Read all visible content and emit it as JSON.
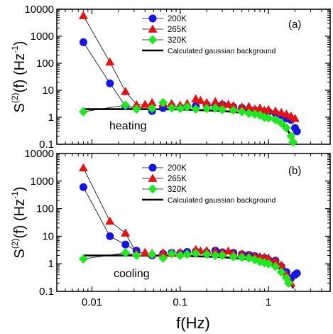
{
  "chart_data": [
    {
      "type": "scatter",
      "panel_label": "(a)",
      "annotation": "heating",
      "ylabel_base": "S",
      "ylabel_sup": "(2)",
      "ylabel_rest": "(f) (Hz",
      "ylabel_unit_sup": "-1",
      "ylabel_close": ")",
      "xlabel": "",
      "xscale": "log",
      "yscale": "log",
      "xlim": [
        0.004,
        5
      ],
      "ylim": [
        0.1,
        10000
      ],
      "yticks": [
        "0.1",
        "1",
        "10",
        "100",
        "1000",
        "10000"
      ],
      "legend_position": "top-right",
      "series": [
        {
          "name": "200K",
          "marker": "circle",
          "color": "#1515e6",
          "points": [
            [
              0.008,
              600
            ],
            [
              0.016,
              18
            ],
            [
              0.024,
              2.6
            ],
            [
              0.032,
              2.2
            ],
            [
              0.048,
              1.7
            ],
            [
              0.064,
              2.2
            ],
            [
              0.08,
              2.6
            ],
            [
              0.1,
              2.3
            ],
            [
              0.12,
              2.5
            ],
            [
              0.15,
              2.6
            ],
            [
              0.2,
              2.9
            ],
            [
              0.25,
              2.6
            ],
            [
              0.3,
              2.9
            ],
            [
              0.4,
              2.4
            ],
            [
              0.5,
              2.2
            ],
            [
              0.6,
              1.9
            ],
            [
              0.7,
              1.8
            ],
            [
              0.8,
              1.5
            ],
            [
              0.9,
              1.6
            ],
            [
              1.0,
              1.6
            ],
            [
              1.2,
              1.4
            ],
            [
              1.4,
              1.2
            ],
            [
              1.6,
              0.9
            ],
            [
              1.8,
              0.8
            ],
            [
              2.0,
              0.4
            ],
            [
              2.1,
              0.3
            ]
          ]
        },
        {
          "name": "265K",
          "marker": "triangle",
          "color": "#e81010",
          "points": [
            [
              0.008,
              5800
            ],
            [
              0.016,
              110
            ],
            [
              0.024,
              9
            ],
            [
              0.032,
              2.9
            ],
            [
              0.04,
              3.0
            ],
            [
              0.048,
              3.5
            ],
            [
              0.064,
              3.3
            ],
            [
              0.08,
              3.2
            ],
            [
              0.1,
              2.8
            ],
            [
              0.12,
              3.2
            ],
            [
              0.15,
              4.8
            ],
            [
              0.17,
              4.2
            ],
            [
              0.2,
              3.5
            ],
            [
              0.25,
              3.8
            ],
            [
              0.3,
              3.1
            ],
            [
              0.35,
              3.0
            ],
            [
              0.4,
              2.7
            ],
            [
              0.5,
              2.4
            ],
            [
              0.6,
              2.5
            ],
            [
              0.7,
              2.0
            ],
            [
              0.8,
              2.2
            ],
            [
              0.9,
              1.8
            ],
            [
              1.0,
              1.9
            ],
            [
              1.2,
              1.7
            ],
            [
              1.4,
              1.5
            ],
            [
              1.6,
              1.3
            ],
            [
              1.8,
              1.1
            ],
            [
              2.0,
              0.9
            ]
          ]
        },
        {
          "name": "320K",
          "marker": "diamond",
          "color": "#1ee81e",
          "points": [
            [
              0.008,
              1.6
            ],
            [
              0.024,
              2.8
            ],
            [
              0.032,
              2.0
            ],
            [
              0.048,
              2.1
            ],
            [
              0.064,
              3.5
            ],
            [
              0.08,
              2.2
            ],
            [
              0.1,
              2.1
            ],
            [
              0.12,
              2.4
            ],
            [
              0.15,
              2.0
            ],
            [
              0.2,
              2.1
            ],
            [
              0.25,
              2.2
            ],
            [
              0.3,
              1.9
            ],
            [
              0.4,
              1.8
            ],
            [
              0.5,
              1.6
            ],
            [
              0.6,
              1.4
            ],
            [
              0.7,
              1.3
            ],
            [
              0.8,
              1.2
            ],
            [
              0.9,
              1.0
            ],
            [
              1.0,
              0.95
            ],
            [
              1.2,
              0.8
            ],
            [
              1.4,
              0.6
            ],
            [
              1.6,
              0.4
            ],
            [
              1.8,
              0.2
            ],
            [
              1.9,
              0.12
            ]
          ]
        },
        {
          "name": "Calculated gaussian background",
          "marker": "line",
          "color": "#000000",
          "points": [
            [
              0.008,
              2.0
            ],
            [
              0.03,
              2.0
            ],
            [
              0.1,
              1.95
            ],
            [
              0.3,
              1.7
            ],
            [
              0.6,
              1.4
            ],
            [
              1.0,
              1.0
            ],
            [
              1.3,
              0.7
            ],
            [
              1.6,
              0.4
            ],
            [
              1.8,
              0.2
            ],
            [
              1.9,
              0.12
            ]
          ]
        }
      ]
    },
    {
      "type": "scatter",
      "panel_label": "(b)",
      "annotation": "cooling",
      "ylabel_base": "S",
      "ylabel_sup": "(2)",
      "ylabel_rest": "(f) (Hz",
      "ylabel_unit_sup": "-1",
      "ylabel_close": ")",
      "xlabel": "f(Hz)",
      "xscale": "log",
      "yscale": "log",
      "xlim": [
        0.004,
        5
      ],
      "ylim": [
        0.1,
        10000
      ],
      "xticks": [
        "0.01",
        "0.1",
        "1"
      ],
      "yticks": [
        "0.1",
        "1",
        "10",
        "100",
        "1000",
        "10000"
      ],
      "legend_position": "top-right",
      "series": [
        {
          "name": "200K",
          "marker": "circle",
          "color": "#1515e6",
          "points": [
            [
              0.008,
              600
            ],
            [
              0.016,
              10
            ],
            [
              0.024,
              5
            ],
            [
              0.032,
              3.0
            ],
            [
              0.048,
              2.0
            ],
            [
              0.064,
              2.3
            ],
            [
              0.08,
              2.5
            ],
            [
              0.1,
              2.4
            ],
            [
              0.12,
              2.7
            ],
            [
              0.15,
              2.8
            ],
            [
              0.2,
              2.6
            ],
            [
              0.25,
              3.0
            ],
            [
              0.3,
              2.6
            ],
            [
              0.4,
              2.5
            ],
            [
              0.5,
              2.2
            ],
            [
              0.6,
              2.1
            ],
            [
              0.7,
              1.9
            ],
            [
              0.8,
              1.6
            ],
            [
              0.9,
              1.6
            ],
            [
              1.0,
              1.4
            ],
            [
              1.2,
              1.3
            ],
            [
              1.4,
              0.8
            ],
            [
              1.6,
              0.5
            ],
            [
              1.8,
              0.3
            ],
            [
              2.0,
              0.4
            ],
            [
              2.1,
              0.45
            ]
          ]
        },
        {
          "name": "265K",
          "marker": "triangle",
          "color": "#e81010",
          "points": [
            [
              0.008,
              3000
            ],
            [
              0.016,
              35
            ],
            [
              0.024,
              13
            ],
            [
              0.032,
              2.4
            ],
            [
              0.04,
              2.6
            ],
            [
              0.048,
              2.4
            ],
            [
              0.064,
              2.5
            ],
            [
              0.08,
              2.4
            ],
            [
              0.1,
              2.6
            ],
            [
              0.12,
              2.4
            ],
            [
              0.15,
              3.3
            ],
            [
              0.17,
              2.9
            ],
            [
              0.2,
              3.0
            ],
            [
              0.25,
              2.8
            ],
            [
              0.3,
              2.6
            ],
            [
              0.35,
              2.9
            ],
            [
              0.4,
              2.4
            ],
            [
              0.5,
              2.3
            ],
            [
              0.6,
              2.0
            ],
            [
              0.7,
              1.9
            ],
            [
              0.8,
              1.8
            ],
            [
              0.9,
              1.7
            ],
            [
              1.0,
              1.6
            ],
            [
              1.2,
              1.3
            ],
            [
              1.4,
              0.9
            ],
            [
              1.6,
              0.4
            ],
            [
              1.8,
              0.2
            ]
          ]
        },
        {
          "name": "320K",
          "marker": "diamond",
          "color": "#1ee81e",
          "points": [
            [
              0.008,
              1.5
            ],
            [
              0.024,
              2.5
            ],
            [
              0.032,
              2.0
            ],
            [
              0.048,
              2.2
            ],
            [
              0.064,
              1.6
            ],
            [
              0.08,
              2.3
            ],
            [
              0.1,
              2.0
            ],
            [
              0.12,
              2.2
            ],
            [
              0.15,
              2.4
            ],
            [
              0.2,
              2.2
            ],
            [
              0.25,
              2.0
            ],
            [
              0.3,
              2.0
            ],
            [
              0.4,
              1.8
            ],
            [
              0.5,
              1.7
            ],
            [
              0.6,
              1.6
            ],
            [
              0.7,
              1.4
            ],
            [
              0.8,
              1.2
            ],
            [
              0.9,
              1.1
            ],
            [
              1.0,
              1.0
            ],
            [
              1.2,
              0.8
            ],
            [
              1.4,
              0.5
            ],
            [
              1.6,
              0.3
            ],
            [
              1.7,
              0.2
            ]
          ]
        },
        {
          "name": "Calculated gaussian background",
          "marker": "line",
          "color": "#000000",
          "points": [
            [
              0.008,
              2.0
            ],
            [
              0.03,
              2.0
            ],
            [
              0.1,
              1.95
            ],
            [
              0.3,
              1.75
            ],
            [
              0.6,
              1.45
            ],
            [
              1.0,
              1.05
            ],
            [
              1.3,
              0.75
            ],
            [
              1.6,
              0.4
            ],
            [
              1.8,
              0.2
            ],
            [
              1.9,
              0.13
            ]
          ]
        }
      ]
    }
  ]
}
